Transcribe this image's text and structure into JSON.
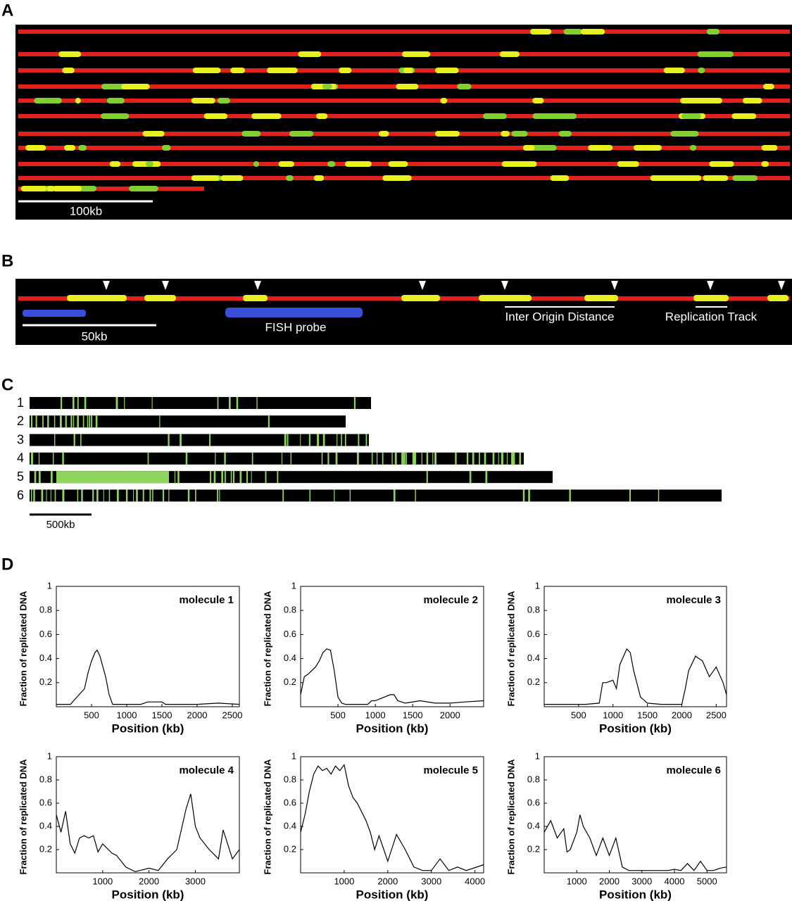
{
  "panels": {
    "A": {
      "label": "A",
      "scale_bar": "100kb"
    },
    "B": {
      "label": "B",
      "scale_bar": "50kb",
      "probe": "FISH probe",
      "distance": "Inter Origin Distance",
      "track": "Replication Track"
    },
    "C": {
      "label": "C",
      "rows": [
        "1",
        "2",
        "3",
        "4",
        "5",
        "6"
      ],
      "scale_bar": "500kb"
    },
    "D": {
      "label": "D"
    }
  },
  "chart_data": [
    {
      "type": "line",
      "title": "molecule 1",
      "x_label": "Position (kb)",
      "y_label": "Fraction of replicated DNA",
      "color": "#000000",
      "x": [
        0,
        200,
        400,
        450,
        500,
        550,
        580,
        620,
        700,
        750,
        800,
        1000,
        1200,
        1300,
        1500,
        1550,
        1800,
        2000,
        2300,
        2600
      ],
      "values": [
        0.02,
        0.02,
        0.15,
        0.28,
        0.38,
        0.45,
        0.47,
        0.42,
        0.25,
        0.1,
        0.02,
        0.02,
        0.02,
        0.04,
        0.04,
        0.02,
        0.02,
        0.02,
        0.03,
        0.02
      ],
      "xlim": [
        0,
        2600
      ],
      "ylim": [
        0,
        1
      ],
      "xticks": [
        500,
        1000,
        1500,
        2000,
        2500
      ],
      "yticks": [
        0.2,
        0.4,
        0.6,
        0.8,
        1
      ]
    },
    {
      "type": "line",
      "title": "molecule 2",
      "x_label": "Position (kb)",
      "y_label": "Fraction of replicated DNA",
      "color": "#000000",
      "x": [
        0,
        50,
        100,
        150,
        200,
        250,
        300,
        350,
        400,
        450,
        500,
        550,
        600,
        900,
        950,
        1000,
        1200,
        1250,
        1300,
        1400,
        1600,
        1800,
        2000,
        2200,
        2450
      ],
      "values": [
        0.1,
        0.25,
        0.27,
        0.3,
        0.33,
        0.38,
        0.45,
        0.48,
        0.47,
        0.3,
        0.08,
        0.03,
        0.02,
        0.02,
        0.05,
        0.05,
        0.1,
        0.1,
        0.05,
        0.03,
        0.05,
        0.03,
        0.03,
        0.04,
        0.05
      ],
      "xlim": [
        0,
        2450
      ],
      "ylim": [
        0,
        1
      ],
      "xticks": [
        500,
        1000,
        1500,
        2000
      ],
      "yticks": [
        0.2,
        0.4,
        0.6,
        0.8,
        1
      ]
    },
    {
      "type": "line",
      "title": "molecule 3",
      "x_label": "Position (kb)",
      "y_label": "Fraction of replicated DNA",
      "color": "#000000",
      "x": [
        0,
        300,
        600,
        800,
        850,
        900,
        1000,
        1050,
        1100,
        1200,
        1250,
        1300,
        1400,
        1500,
        1700,
        2000,
        2050,
        2100,
        2200,
        2300,
        2400,
        2500,
        2600,
        2650
      ],
      "values": [
        0.02,
        0.02,
        0.02,
        0.03,
        0.2,
        0.2,
        0.22,
        0.15,
        0.35,
        0.48,
        0.45,
        0.3,
        0.08,
        0.03,
        0.02,
        0.02,
        0.15,
        0.3,
        0.42,
        0.38,
        0.25,
        0.33,
        0.2,
        0.1
      ],
      "xlim": [
        0,
        2650
      ],
      "ylim": [
        0,
        1
      ],
      "xticks": [
        500,
        1000,
        1500,
        2000,
        2500
      ],
      "yticks": [
        0.2,
        0.4,
        0.6,
        0.8,
        1
      ]
    },
    {
      "type": "line",
      "title": "molecule 4",
      "x_label": "Position (kb)",
      "y_label": "Fraction of replicated DNA",
      "color": "#000000",
      "x": [
        0,
        100,
        200,
        300,
        400,
        500,
        600,
        700,
        800,
        900,
        1000,
        1200,
        1300,
        1500,
        1700,
        2000,
        2200,
        2400,
        2600,
        2800,
        2900,
        3000,
        3100,
        3300,
        3500,
        3600,
        3800,
        3950
      ],
      "values": [
        0.5,
        0.35,
        0.53,
        0.25,
        0.17,
        0.3,
        0.32,
        0.3,
        0.32,
        0.18,
        0.25,
        0.17,
        0.15,
        0.05,
        0.01,
        0.04,
        0.02,
        0.12,
        0.2,
        0.55,
        0.68,
        0.4,
        0.3,
        0.2,
        0.12,
        0.37,
        0.12,
        0.2
      ],
      "xlim": [
        0,
        3950
      ],
      "ylim": [
        0,
        1
      ],
      "xticks": [
        1000,
        2000,
        3000
      ],
      "yticks": [
        0.2,
        0.4,
        0.6,
        0.8,
        1
      ]
    },
    {
      "type": "line",
      "title": "molecule 5",
      "x_label": "Position (kb)",
      "y_label": "Fraction of replicated DNA",
      "color": "#000000",
      "x": [
        0,
        100,
        200,
        300,
        400,
        500,
        600,
        700,
        800,
        900,
        1000,
        1100,
        1200,
        1300,
        1500,
        1600,
        1700,
        1800,
        2000,
        2200,
        2400,
        2600,
        2800,
        3000,
        3200,
        3400,
        3600,
        3800,
        4200
      ],
      "values": [
        0.35,
        0.5,
        0.7,
        0.85,
        0.92,
        0.88,
        0.9,
        0.85,
        0.92,
        0.88,
        0.93,
        0.75,
        0.65,
        0.6,
        0.45,
        0.35,
        0.2,
        0.32,
        0.1,
        0.33,
        0.2,
        0.05,
        0.02,
        0.02,
        0.12,
        0.02,
        0.05,
        0.02,
        0.07
      ],
      "xlim": [
        0,
        4200
      ],
      "ylim": [
        0,
        1
      ],
      "xticks": [
        1000,
        2000,
        3000,
        4000
      ],
      "yticks": [
        0.2,
        0.4,
        0.6,
        0.8,
        1
      ]
    },
    {
      "type": "line",
      "title": "molecule 6",
      "x_label": "Position (kb)",
      "y_label": "Fraction of replicated DNA",
      "color": "#000000",
      "x": [
        0,
        200,
        400,
        600,
        700,
        800,
        1000,
        1100,
        1200,
        1400,
        1600,
        1800,
        2000,
        2200,
        2400,
        2600,
        3000,
        3400,
        3800,
        4000,
        4200,
        4400,
        4600,
        4800,
        5000,
        5200,
        5400,
        5600
      ],
      "values": [
        0.35,
        0.45,
        0.3,
        0.38,
        0.18,
        0.2,
        0.35,
        0.5,
        0.4,
        0.3,
        0.15,
        0.3,
        0.15,
        0.3,
        0.05,
        0.02,
        0.02,
        0.02,
        0.02,
        0.03,
        0.02,
        0.08,
        0.02,
        0.1,
        0.02,
        0.02,
        0.04,
        0.05
      ],
      "xlim": [
        0,
        5600
      ],
      "ylim": [
        0,
        1
      ],
      "xticks": [
        1000,
        2000,
        3000,
        4000,
        5000
      ],
      "yticks": [
        0.2,
        0.4,
        0.6,
        0.8,
        1
      ]
    }
  ]
}
